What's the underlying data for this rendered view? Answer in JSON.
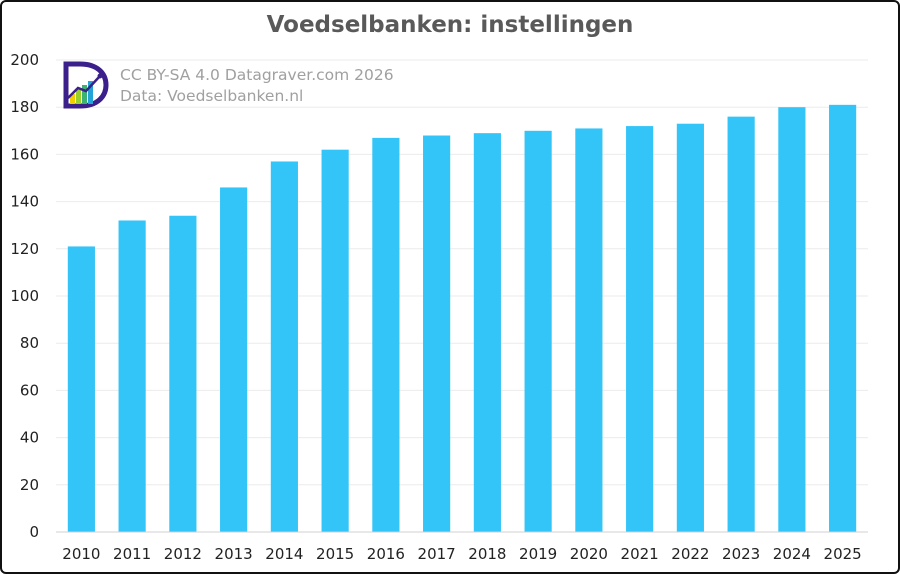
{
  "title": "Voedselbanken: instellingen",
  "credits": {
    "line1": "CC BY-SA 4.0 Datagraver.com 2026",
    "line2": "Data: Voedselbanken.nl"
  },
  "colors": {
    "bar": "#33c4f8",
    "grid": "#ebebeb",
    "axis": "#d0d0d0",
    "title": "#595959"
  },
  "chart_data": {
    "type": "bar",
    "title": "Voedselbanken: instellingen",
    "categories": [
      "2010",
      "2011",
      "2012",
      "2013",
      "2014",
      "2015",
      "2016",
      "2017",
      "2018",
      "2019",
      "2020",
      "2021",
      "2022",
      "2023",
      "2024",
      "2025"
    ],
    "series": [
      {
        "values": [
          121,
          132,
          134,
          146,
          157,
          162,
          167,
          168,
          169,
          170,
          171,
          172,
          173,
          176,
          180,
          181
        ]
      }
    ],
    "ylim": [
      0,
      200
    ],
    "yticks": [
      0,
      20,
      40,
      60,
      80,
      100,
      120,
      140,
      160,
      180,
      200
    ],
    "xlabel": "",
    "ylabel": "",
    "grid": true,
    "legend": "none"
  }
}
